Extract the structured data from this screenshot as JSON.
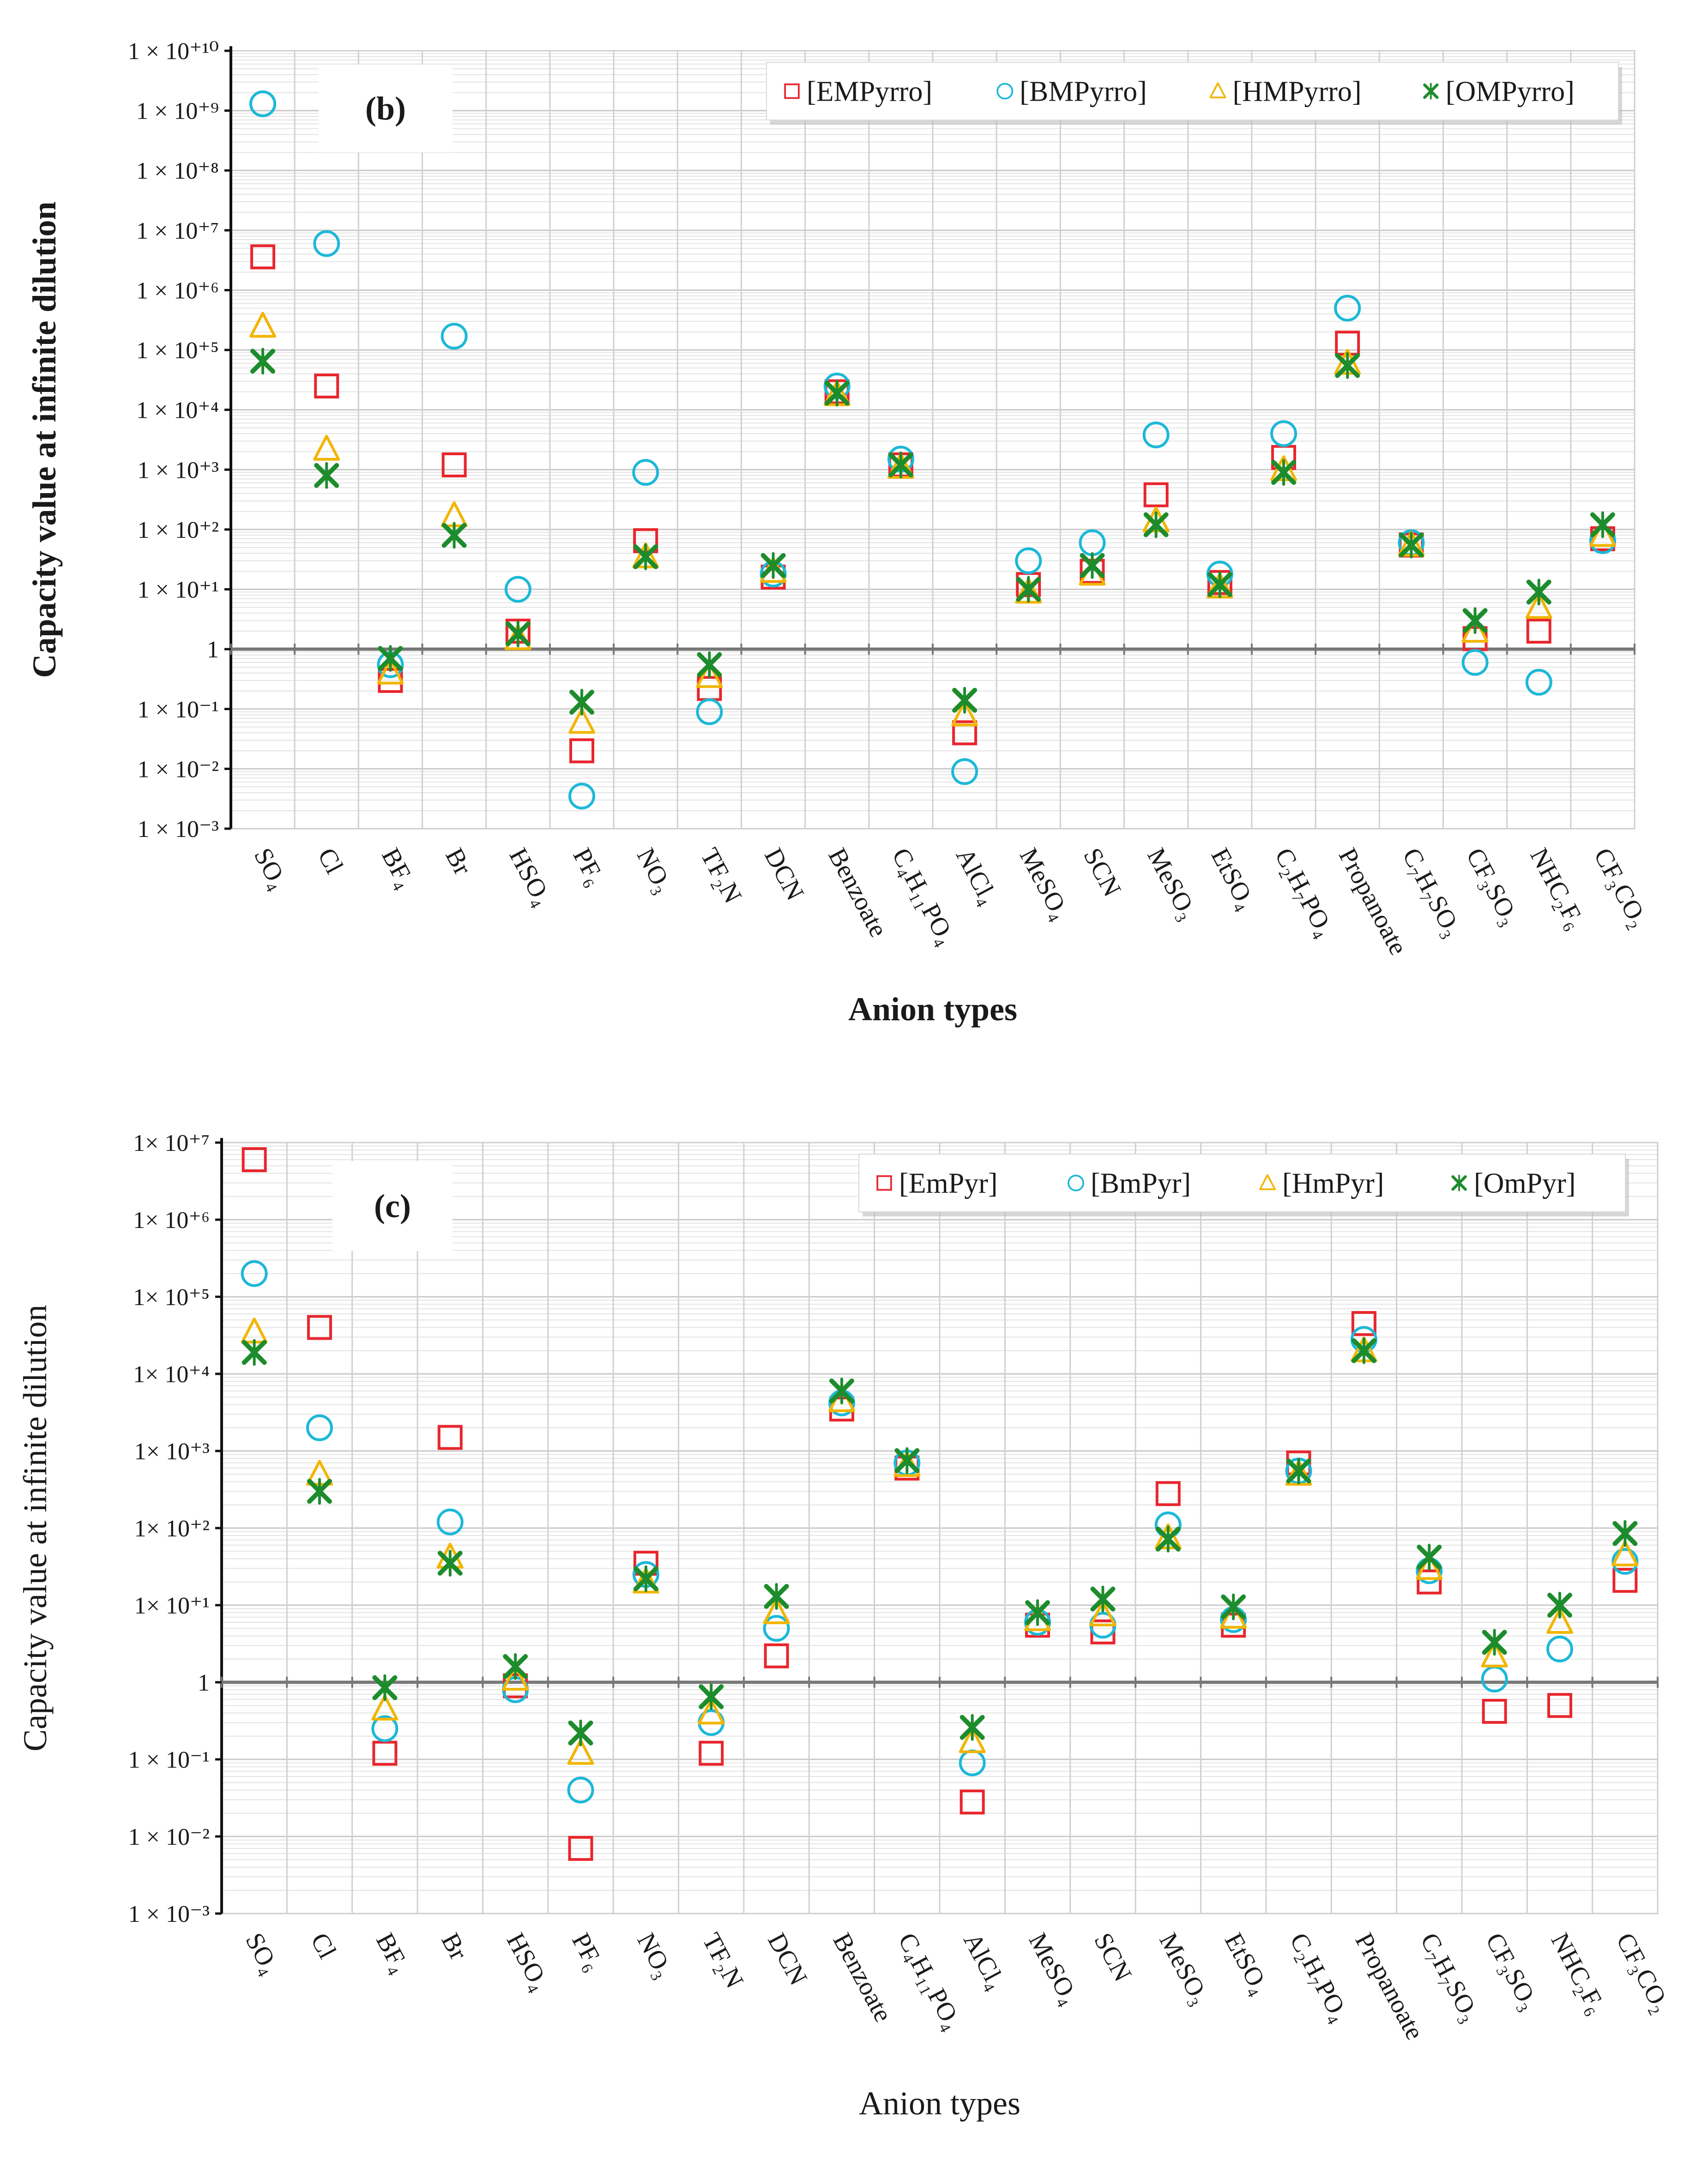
{
  "chart_data": [
    {
      "type": "scatter",
      "panel_label": "(b)",
      "yscale": "log",
      "ylim_exponents": [
        -3,
        10
      ],
      "y_tick_labels": [
        "1 × 10⁻³",
        "1 × 10⁻²",
        "1 × 10⁻¹",
        "1",
        "1 × 10⁺¹",
        "1 × 10⁺²",
        "1 × 10⁺³",
        "1 × 10⁺⁴",
        "1 × 10⁺⁵",
        "1 × 10⁺⁶",
        "1 × 10⁺⁷",
        "1 × 10⁺⁸",
        "1 × 10⁺⁹",
        "1 × 10⁺¹⁰"
      ],
      "xlabel": "Anion types",
      "ylabel": "Capacity value at infinite dilution",
      "legend_position": "top-right",
      "categories": [
        "SO₄",
        "Cl",
        "BF₄",
        "Br",
        "HSO₄",
        "PF₆",
        "NO₃",
        "TF₂N",
        "DCN",
        "Benzoate",
        "C₄H₁₁PO₄",
        "AlCl₄",
        "MeSO₄",
        "SCN",
        "MeSO₃",
        "EtSO₄",
        "C₂H₇PO₄",
        "Propanoate",
        "C₇H₇SO₃",
        "CF₃SO₃",
        "NHC₂F₆",
        "CF₃CO₂"
      ],
      "series": [
        {
          "name": "[EMPyrro]",
          "marker": "square",
          "color": "#e8262d",
          "values": [
            3600000,
            25000,
            0.3,
            1200,
            2,
            0.02,
            65,
            0.22,
            16,
            20000,
            1200,
            0.04,
            12,
            20,
            380,
            13,
            1600,
            130000,
            55,
            1.5,
            2,
            70
          ]
        },
        {
          "name": "[BMPyrro]",
          "marker": "circle",
          "color": "#1cb8d8",
          "values": [
            1300000000,
            6000000,
            0.55,
            170000,
            10,
            0.0035,
            900,
            0.09,
            18,
            25000,
            1500,
            0.009,
            30,
            60,
            3800,
            18,
            4000,
            500000,
            60,
            0.6,
            0.28,
            65
          ]
        },
        {
          "name": "[HMPyrro]",
          "marker": "triangle",
          "color": "#f2b500",
          "values": [
            250000,
            2200,
            0.4,
            170,
            1.5,
            0.06,
            35,
            0.35,
            20,
            18000,
            1100,
            0.08,
            9,
            18,
            140,
            11,
            1000,
            60000,
            55,
            2,
            5,
            80
          ]
        },
        {
          "name": "[OMPyrro]",
          "marker": "cross",
          "color": "#1d8c2c",
          "values": [
            65000,
            800,
            0.7,
            80,
            1.8,
            0.13,
            35,
            0.55,
            25,
            19000,
            1200,
            0.14,
            10,
            25,
            120,
            12,
            900,
            55000,
            55,
            3,
            9,
            120
          ]
        }
      ]
    },
    {
      "type": "scatter",
      "panel_label": "(c)",
      "yscale": "log",
      "ylim_exponents": [
        -3,
        7
      ],
      "y_tick_labels": [
        "1 × 10⁻³",
        "1 × 10⁻²",
        "1 × 10⁻¹",
        "1",
        "1× 10⁺¹",
        "1× 10⁺²",
        "1× 10⁺³",
        "1× 10⁺⁴",
        "1× 10⁺⁵",
        "1× 10⁺⁶",
        "1× 10⁺⁷"
      ],
      "xlabel": "Anion types",
      "ylabel": "Capacity value at infinite dilution",
      "legend_position": "top-right",
      "categories": [
        "SO₄",
        "Cl",
        "BF₄",
        "Br",
        "HSO₄",
        "PF₆",
        "NO₃",
        "TF₂N",
        "DCN",
        "Benzoate",
        "C₄H₁₁PO₄",
        "AlCl₄",
        "MeSO₄",
        "SCN",
        "MeSO₃",
        "EtSO₄",
        "C₂H₇PO₄",
        "Propanoate",
        "C₇H₇SO₃",
        "CF₃SO₃",
        "NHC₂F₆",
        "CF₃CO₂"
      ],
      "series": [
        {
          "name": "[EmPyr]",
          "marker": "square",
          "color": "#e8262d",
          "values": [
            6000000,
            40000,
            0.12,
            1500,
            0.9,
            0.007,
            35,
            0.12,
            2.2,
            3500,
            600,
            0.028,
            5.5,
            4.5,
            280,
            5.5,
            700,
            45000,
            20,
            0.42,
            0.5,
            21
          ]
        },
        {
          "name": "[BmPyr]",
          "marker": "circle",
          "color": "#1cb8d8",
          "values": [
            200000,
            2000,
            0.25,
            120,
            0.8,
            0.04,
            25,
            0.3,
            5,
            4200,
            700,
            0.09,
            6,
            5.5,
            110,
            6.5,
            550,
            28000,
            28,
            1.1,
            2.7,
            37
          ]
        },
        {
          "name": "[HmPyr]",
          "marker": "triangle",
          "color": "#f2b500",
          "values": [
            35000,
            500,
            0.45,
            42,
            1.1,
            0.12,
            20,
            0.4,
            8,
            4500,
            650,
            0.17,
            6.5,
            7.5,
            75,
            7,
            500,
            20000,
            30,
            2.2,
            6,
            45
          ]
        },
        {
          "name": "[OmPyr]",
          "marker": "cross",
          "color": "#1d8c2c",
          "values": [
            19000,
            300,
            0.85,
            35,
            1.6,
            0.22,
            22,
            0.65,
            13,
            6000,
            750,
            0.26,
            8,
            12,
            72,
            9.5,
            550,
            20000,
            42,
            3.3,
            10,
            85
          ]
        }
      ]
    }
  ]
}
